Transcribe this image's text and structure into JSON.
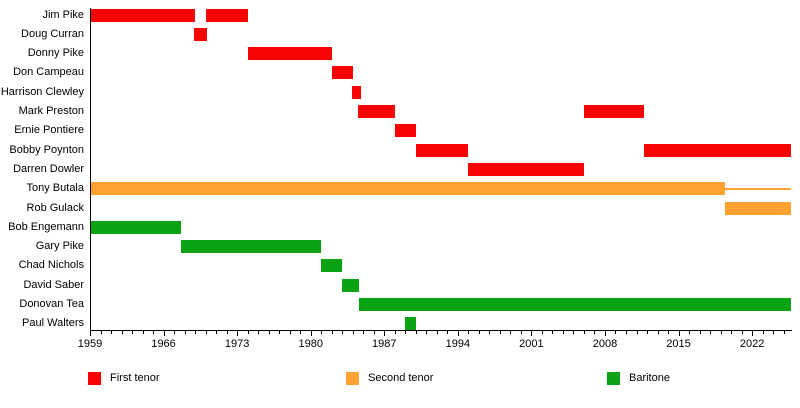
{
  "chart_data": {
    "type": "bar",
    "subtype": "timeline-gantt",
    "title": "",
    "xlabel": "",
    "ylabel": "",
    "grid": false,
    "legend_position": "bottom",
    "axis": {
      "start": 1959,
      "end": 2025.7,
      "major_ticks": [
        1959,
        1966,
        1973,
        1980,
        1987,
        1994,
        2001,
        2008,
        2015,
        2022
      ],
      "minor_tick_every": 1
    },
    "x_tick_labels": [
      "1959",
      "1966",
      "1973",
      "1980",
      "1987",
      "1994",
      "2001",
      "2008",
      "2015",
      "2022"
    ],
    "roles": {
      "first_tenor": {
        "label": "First tenor",
        "color": "#f70505"
      },
      "second_tenor": {
        "label": "Second tenor",
        "color": "#ffa232"
      },
      "baritone": {
        "label": "Baritone",
        "color": "#0aa314"
      }
    },
    "rows": [
      {
        "name": "Jim Pike",
        "role": "first_tenor",
        "bars": [
          {
            "start": 1959,
            "end": 1969
          },
          {
            "start": 1970,
            "end": 1974
          }
        ]
      },
      {
        "name": "Doug Curran",
        "role": "first_tenor",
        "bars": [
          {
            "start": 1968.9,
            "end": 1970.1
          }
        ]
      },
      {
        "name": "Donny Pike",
        "role": "first_tenor",
        "bars": [
          {
            "start": 1974,
            "end": 1982
          }
        ]
      },
      {
        "name": "Don Campeau",
        "role": "first_tenor",
        "bars": [
          {
            "start": 1982,
            "end": 1984
          }
        ]
      },
      {
        "name": "Harrison Clewley",
        "role": "first_tenor",
        "bars": [
          {
            "start": 1983.9,
            "end": 1984.8
          }
        ]
      },
      {
        "name": "Mark Preston",
        "role": "first_tenor",
        "bars": [
          {
            "start": 1984.5,
            "end": 1988
          },
          {
            "start": 2006,
            "end": 2011.7
          }
        ]
      },
      {
        "name": "Ernie Pontiere",
        "role": "first_tenor",
        "bars": [
          {
            "start": 1988,
            "end": 1990
          }
        ]
      },
      {
        "name": "Bobby Poynton",
        "role": "first_tenor",
        "bars": [
          {
            "start": 1990,
            "end": 1995
          },
          {
            "start": 2011.7,
            "end": 2025.7
          }
        ]
      },
      {
        "name": "Darren Dowler",
        "role": "first_tenor",
        "bars": [
          {
            "start": 1995,
            "end": 2006
          }
        ]
      },
      {
        "name": "Tony Butala",
        "role": "second_tenor",
        "bars": [
          {
            "start": 1959,
            "end": 2019.4
          },
          {
            "start": 2019.4,
            "end": 2025.7,
            "style": "thin"
          }
        ]
      },
      {
        "name": "Rob Gulack",
        "role": "second_tenor",
        "bars": [
          {
            "start": 2019.4,
            "end": 2025.7
          }
        ]
      },
      {
        "name": "Bob Engemann",
        "role": "baritone",
        "bars": [
          {
            "start": 1959,
            "end": 1967.7
          }
        ]
      },
      {
        "name": "Gary Pike",
        "role": "baritone",
        "bars": [
          {
            "start": 1967.7,
            "end": 1981
          }
        ]
      },
      {
        "name": "Chad Nichols",
        "role": "baritone",
        "bars": [
          {
            "start": 1981,
            "end": 1983
          }
        ]
      },
      {
        "name": "David Saber",
        "role": "baritone",
        "bars": [
          {
            "start": 1983,
            "end": 1984.6
          }
        ]
      },
      {
        "name": "Donovan Tea",
        "role": "baritone",
        "bars": [
          {
            "start": 1984.6,
            "end": 2025.7
          }
        ]
      },
      {
        "name": "Paul Walters",
        "role": "baritone",
        "bars": [
          {
            "start": 1989,
            "end": 1990
          }
        ]
      }
    ],
    "legend": [
      "First tenor",
      "Second tenor",
      "Baritone"
    ]
  }
}
